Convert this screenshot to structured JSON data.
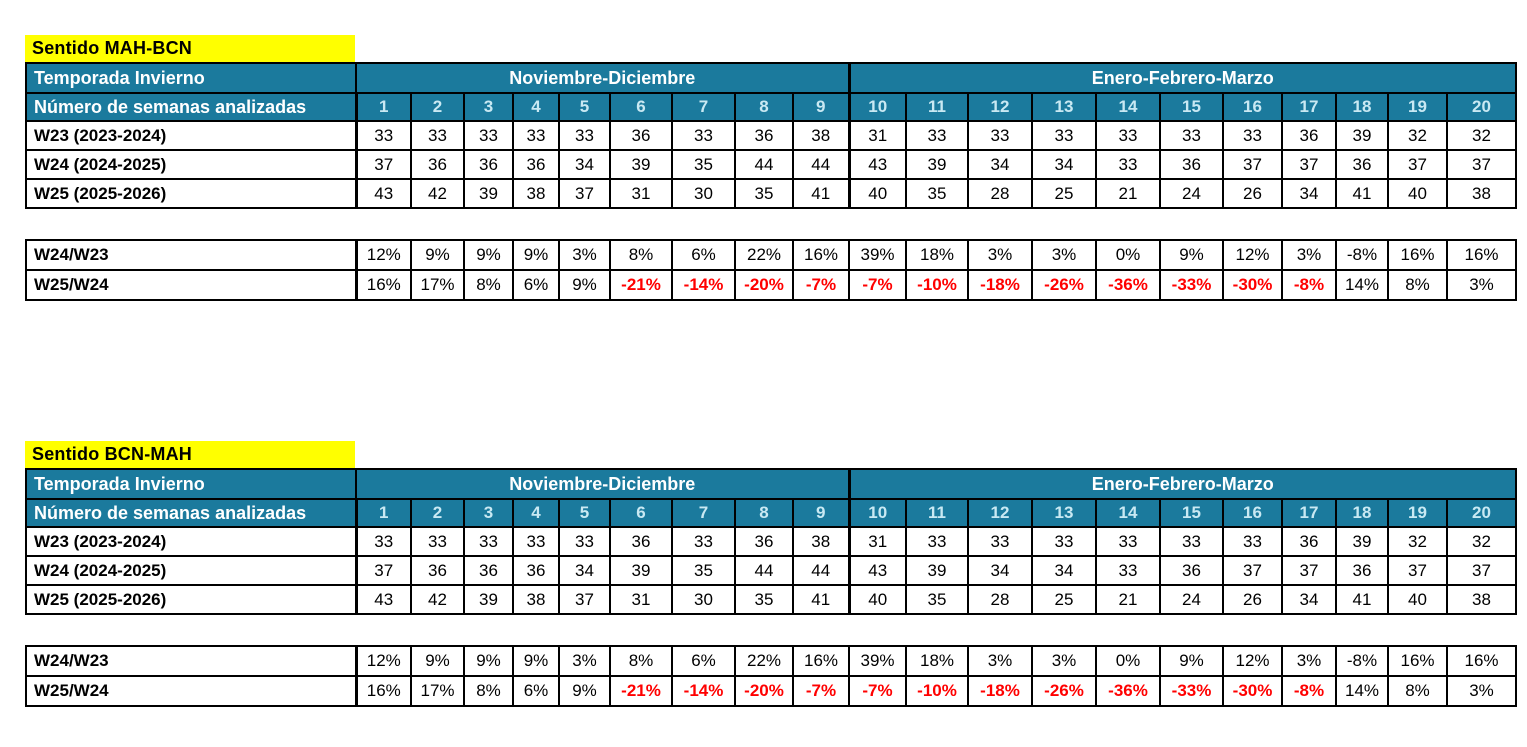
{
  "colors": {
    "header_bg": "#1b7a9d",
    "header_text": "#ffffff",
    "week_number_text": "#c9e9f3",
    "title_bg": "#ffff00",
    "negative_text": "#ff0000",
    "border": "#000000"
  },
  "columns": [
    "1",
    "2",
    "3",
    "4",
    "5",
    "6",
    "7",
    "8",
    "9",
    "10",
    "11",
    "12",
    "13",
    "14",
    "15",
    "16",
    "17",
    "18",
    "19",
    "20"
  ],
  "tables": [
    {
      "title": "Sentido MAH-BCN",
      "header": {
        "season_label": "Temporada Invierno",
        "weeks_label": "Número de semanas analizadas",
        "group1": "Noviembre-Diciembre",
        "group2": "Enero-Febrero-Marzo"
      },
      "rows": [
        {
          "label": "W23 (2023-2024)",
          "values": [
            "33",
            "33",
            "33",
            "33",
            "33",
            "36",
            "33",
            "36",
            "38",
            "31",
            "33",
            "33",
            "33",
            "33",
            "33",
            "33",
            "36",
            "39",
            "32",
            "32"
          ]
        },
        {
          "label": "W24 (2024-2025)",
          "values": [
            "37",
            "36",
            "36",
            "36",
            "34",
            "39",
            "35",
            "44",
            "44",
            "43",
            "39",
            "34",
            "34",
            "33",
            "36",
            "37",
            "37",
            "36",
            "37",
            "37"
          ]
        },
        {
          "label": "W25 (2025-2026)",
          "values": [
            "43",
            "42",
            "39",
            "38",
            "37",
            "31",
            "30",
            "35",
            "41",
            "40",
            "35",
            "28",
            "25",
            "21",
            "24",
            "26",
            "34",
            "41",
            "40",
            "38"
          ]
        }
      ],
      "comparison_rows": [
        {
          "label": "W24/W23",
          "values": [
            "12%",
            "9%",
            "9%",
            "9%",
            "3%",
            "8%",
            "6%",
            "22%",
            "16%",
            "39%",
            "18%",
            "3%",
            "3%",
            "0%",
            "9%",
            "12%",
            "3%",
            "-8%",
            "16%",
            "16%"
          ],
          "red": [
            false,
            false,
            false,
            false,
            false,
            false,
            false,
            false,
            false,
            false,
            false,
            false,
            false,
            false,
            false,
            false,
            false,
            false,
            false,
            false
          ]
        },
        {
          "label": "W25/W24",
          "values": [
            "16%",
            "17%",
            "8%",
            "6%",
            "9%",
            "-21%",
            "-14%",
            "-20%",
            "-7%",
            "-7%",
            "-10%",
            "-18%",
            "-26%",
            "-36%",
            "-33%",
            "-30%",
            "-8%",
            "14%",
            "8%",
            "3%"
          ],
          "red": [
            false,
            false,
            false,
            false,
            false,
            true,
            true,
            true,
            true,
            true,
            true,
            true,
            true,
            true,
            true,
            true,
            true,
            false,
            false,
            false
          ]
        }
      ]
    },
    {
      "title": "Sentido BCN-MAH",
      "header": {
        "season_label": "Temporada Invierno",
        "weeks_label": "Número de semanas analizadas",
        "group1": "Noviembre-Diciembre",
        "group2": "Enero-Febrero-Marzo"
      },
      "rows": [
        {
          "label": "W23 (2023-2024)",
          "values": [
            "33",
            "33",
            "33",
            "33",
            "33",
            "36",
            "33",
            "36",
            "38",
            "31",
            "33",
            "33",
            "33",
            "33",
            "33",
            "33",
            "36",
            "39",
            "32",
            "32"
          ]
        },
        {
          "label": "W24 (2024-2025)",
          "values": [
            "37",
            "36",
            "36",
            "36",
            "34",
            "39",
            "35",
            "44",
            "44",
            "43",
            "39",
            "34",
            "34",
            "33",
            "36",
            "37",
            "37",
            "36",
            "37",
            "37"
          ]
        },
        {
          "label": "W25 (2025-2026)",
          "values": [
            "43",
            "42",
            "39",
            "38",
            "37",
            "31",
            "30",
            "35",
            "41",
            "40",
            "35",
            "28",
            "25",
            "21",
            "24",
            "26",
            "34",
            "41",
            "40",
            "38"
          ]
        }
      ],
      "comparison_rows": [
        {
          "label": "W24/W23",
          "values": [
            "12%",
            "9%",
            "9%",
            "9%",
            "3%",
            "8%",
            "6%",
            "22%",
            "16%",
            "39%",
            "18%",
            "3%",
            "3%",
            "0%",
            "9%",
            "12%",
            "3%",
            "-8%",
            "16%",
            "16%"
          ],
          "red": [
            false,
            false,
            false,
            false,
            false,
            false,
            false,
            false,
            false,
            false,
            false,
            false,
            false,
            false,
            false,
            false,
            false,
            false,
            false,
            false
          ]
        },
        {
          "label": "W25/W24",
          "values": [
            "16%",
            "17%",
            "8%",
            "6%",
            "9%",
            "-21%",
            "-14%",
            "-20%",
            "-7%",
            "-7%",
            "-10%",
            "-18%",
            "-26%",
            "-36%",
            "-33%",
            "-30%",
            "-8%",
            "14%",
            "8%",
            "3%"
          ],
          "red": [
            false,
            false,
            false,
            false,
            false,
            true,
            true,
            true,
            true,
            true,
            true,
            true,
            true,
            true,
            true,
            true,
            true,
            false,
            false,
            false
          ]
        }
      ]
    }
  ]
}
